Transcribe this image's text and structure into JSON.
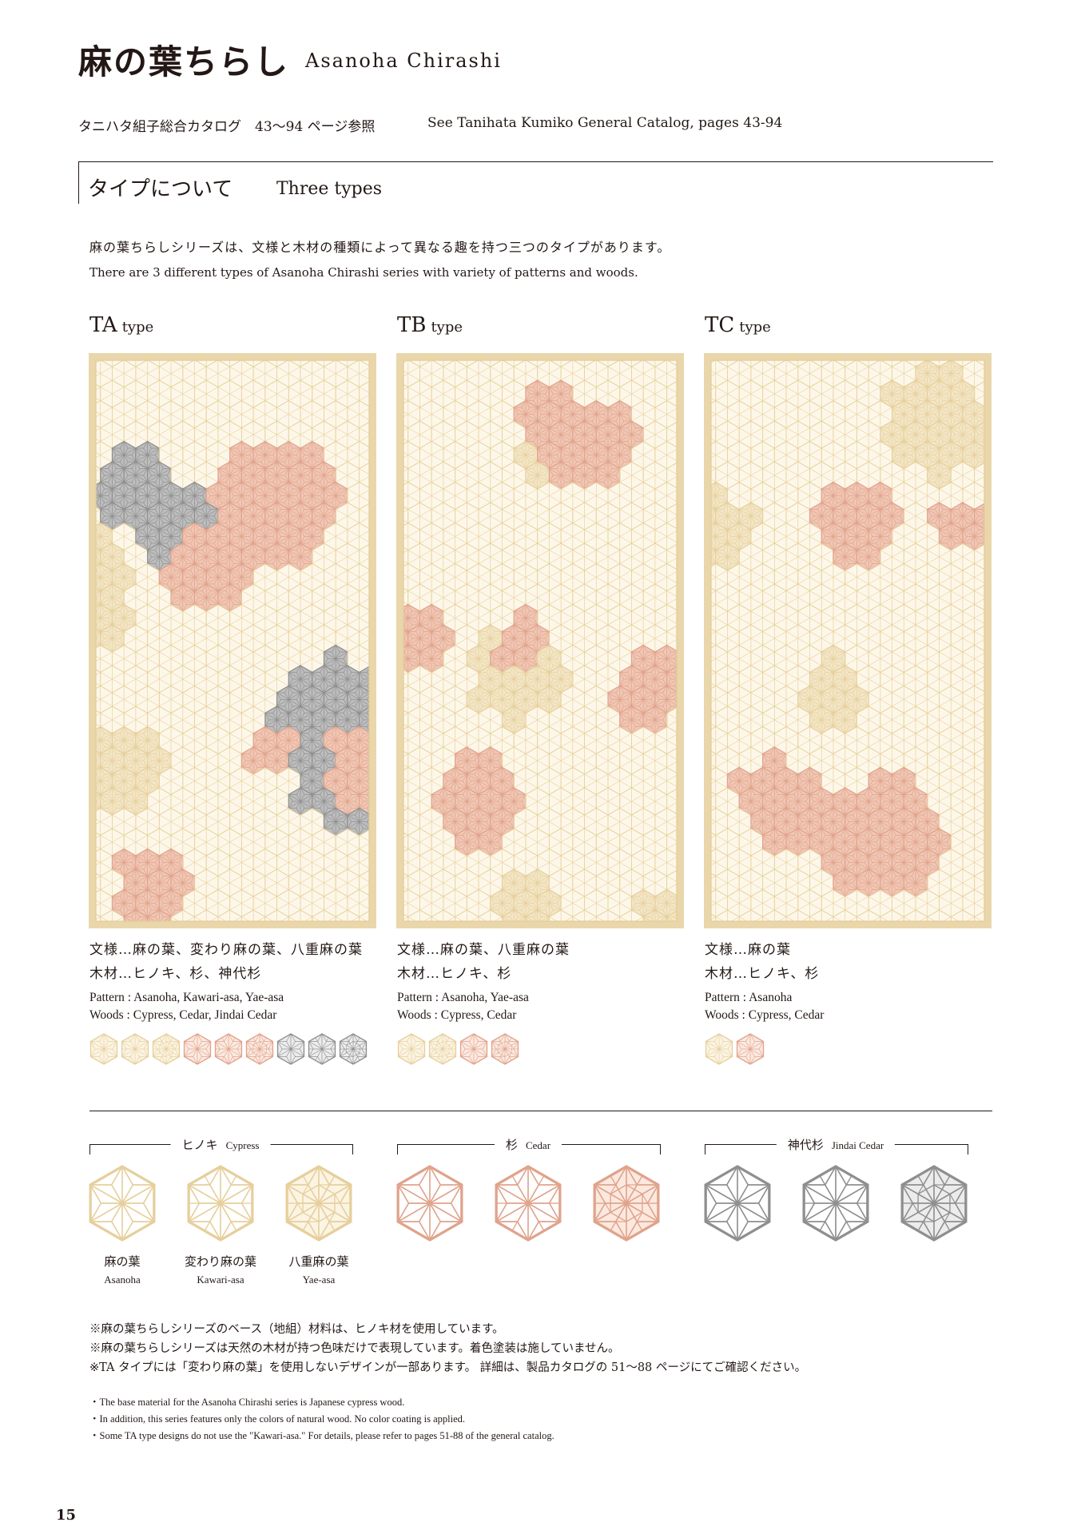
{
  "colors": {
    "gold_tab": "#a2916a",
    "frame": "#e9d6ab",
    "grid": "#e8d39d",
    "panel_bg": "#fdf7ea",
    "hinoki": "#e6cf9c",
    "hinoki_fill": "#f3e6c6",
    "cedar": "#e0a38c",
    "cedar_fill": "#f0c7b4",
    "jindai": "#8f8f8f",
    "jindai_fill": "#bdbdbd"
  },
  "header": {
    "title_jp": "麻の葉ちらし",
    "title_en": "Asanoha Chirashi",
    "ref_jp": "タニハタ組子総合カタログ　43〜94 ページ参照",
    "ref_en": "See Tanihata Kumiko General Catalog, pages 43-94"
  },
  "section": {
    "title_jp": "タイプについて",
    "title_en": "Three types",
    "intro_jp": "麻の葉ちらしシリーズは、文様と木材の種類によって異なる趣を持つ三つのタイプがあります。",
    "intro_en": "There are 3 different types of Asanoha Chirashi series with variety of patterns and woods."
  },
  "types": [
    {
      "code": "TA",
      "suffix": "type",
      "pattern_jp": "文様…麻の葉、変わり麻の葉、八重麻の葉",
      "woods_jp": "木材…ヒノキ、杉、神代杉",
      "pattern_en": "Pattern : Asanoha, Kawari-asa, Yae-asa",
      "woods_en": "Woods : Cypress, Cedar, Jindai Cedar",
      "swatches": [
        {
          "wood": "hinoki",
          "style": "asanoha"
        },
        {
          "wood": "hinoki",
          "style": "kawari"
        },
        {
          "wood": "hinoki",
          "style": "yae"
        },
        {
          "wood": "cedar",
          "style": "asanoha"
        },
        {
          "wood": "cedar",
          "style": "kawari"
        },
        {
          "wood": "cedar",
          "style": "yae"
        },
        {
          "wood": "jindai",
          "style": "asanoha"
        },
        {
          "wood": "jindai",
          "style": "kawari"
        },
        {
          "wood": "jindai",
          "style": "yae"
        }
      ]
    },
    {
      "code": "TB",
      "suffix": "type",
      "pattern_jp": "文様…麻の葉、八重麻の葉",
      "woods_jp": "木材…ヒノキ、杉",
      "pattern_en": "Pattern : Asanoha, Yae-asa",
      "woods_en": "Woods : Cypress, Cedar",
      "swatches": [
        {
          "wood": "hinoki",
          "style": "asanoha"
        },
        {
          "wood": "hinoki",
          "style": "yae"
        },
        {
          "wood": "cedar",
          "style": "asanoha"
        },
        {
          "wood": "cedar",
          "style": "yae"
        }
      ]
    },
    {
      "code": "TC",
      "suffix": "type",
      "pattern_jp": "文様…麻の葉",
      "woods_jp": "木材…ヒノキ、杉",
      "pattern_en": "Pattern : Asanoha",
      "woods_en": "Woods : Cypress, Cedar",
      "swatches": [
        {
          "wood": "hinoki",
          "style": "asanoha"
        },
        {
          "wood": "cedar",
          "style": "asanoha"
        }
      ]
    }
  ],
  "woods": [
    {
      "key": "hinoki",
      "name_jp": "ヒノキ",
      "name_en": "Cypress"
    },
    {
      "key": "cedar",
      "name_jp": "杉",
      "name_en": "Cedar"
    },
    {
      "key": "jindai",
      "name_jp": "神代杉",
      "name_en": "Jindai Cedar"
    }
  ],
  "patterns": [
    {
      "name_jp": "麻の葉",
      "name_en": "Asanoha"
    },
    {
      "name_jp": "変わり麻の葉",
      "name_en": "Kawari-asa"
    },
    {
      "name_jp": "八重麻の葉",
      "name_en": "Yae-asa"
    }
  ],
  "notes_jp": [
    "※麻の葉ちらしシリーズのベース（地組）材料は、ヒノキ材を使用しています。",
    "※麻の葉ちらしシリーズは天然の木材が持つ色味だけで表現しています。着色塗装は施していません。",
    "※TA タイプには「変わり麻の葉」を使用しないデザインが一部あります。 詳細は、製品カタログの 51〜88 ページにてご確認ください。"
  ],
  "notes_en": [
    "・The base material for the Asanoha Chirashi series is Japanese cypress wood.",
    "・In addition, this series features only the colors of natural wood. No color coating is applied.",
    "・Some TA type designs do not use the \"Kawari-asa.\"  For details, please refer to pages 51-88 of the general catalog."
  ],
  "page_number": "15"
}
